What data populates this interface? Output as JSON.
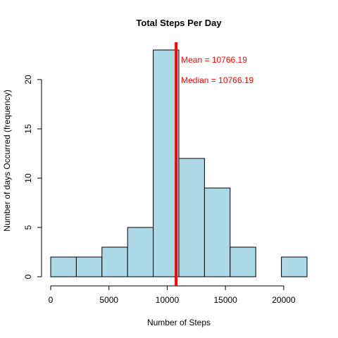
{
  "chart_data": {
    "type": "bar",
    "subtype": "histogram",
    "title": "Total Steps Per Day",
    "xlabel": "Number of Steps",
    "ylabel": "Number of days Occurred (frequency)",
    "bins": [
      {
        "start": 0,
        "end": 2200,
        "count": 2
      },
      {
        "start": 2200,
        "end": 4400,
        "count": 2
      },
      {
        "start": 4400,
        "end": 6600,
        "count": 3
      },
      {
        "start": 6600,
        "end": 8800,
        "count": 5
      },
      {
        "start": 8800,
        "end": 11000,
        "count": 23
      },
      {
        "start": 11000,
        "end": 13200,
        "count": 12
      },
      {
        "start": 13200,
        "end": 15400,
        "count": 9
      },
      {
        "start": 15400,
        "end": 17600,
        "count": 3
      },
      {
        "start": 17600,
        "end": 19800,
        "count": 0
      },
      {
        "start": 19800,
        "end": 22000,
        "count": 2
      }
    ],
    "xlim": [
      0,
      22000
    ],
    "ylim": [
      0,
      23
    ],
    "xticks": [
      0,
      5000,
      10000,
      15000,
      20000
    ],
    "yticks": [
      0,
      5,
      10,
      15,
      20
    ],
    "bar_color": "#add8e6",
    "mean_line": {
      "value": 10766.19,
      "color": "#ff0000"
    },
    "annotations": [
      {
        "text": "Mean =  10766.19",
        "color": "#ff0000"
      },
      {
        "text": "Median =  10766.19",
        "color": "#ff0000"
      }
    ],
    "grid": false,
    "legend": "none"
  }
}
